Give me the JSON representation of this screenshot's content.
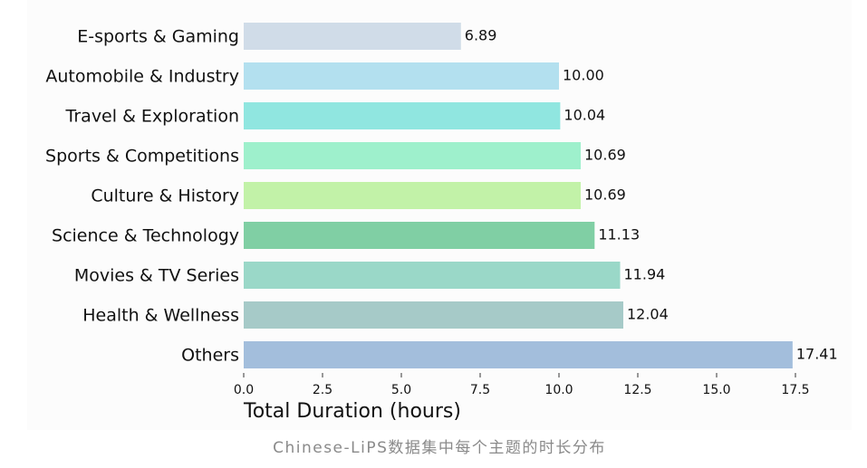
{
  "chart_data": {
    "type": "bar",
    "orientation": "horizontal",
    "categories": [
      "E-sports & Gaming",
      "Automobile & Industry",
      "Travel & Exploration",
      "Sports & Competitions",
      "Culture & History",
      "Science & Technology",
      "Movies & TV Series",
      "Health & Wellness",
      "Others"
    ],
    "values": [
      6.89,
      10.0,
      10.04,
      10.69,
      10.69,
      11.13,
      11.94,
      12.04,
      17.41
    ],
    "value_labels": [
      "6.89",
      "10.00",
      "10.04",
      "10.69",
      "10.69",
      "11.13",
      "11.94",
      "12.04",
      "17.41"
    ],
    "colors": [
      "#d0dce8",
      "#b3e0ef",
      "#90e6e0",
      "#9ef0cc",
      "#c2f2a8",
      "#80cfa4",
      "#9ad8c8",
      "#a6cac8",
      "#a3bedc"
    ],
    "xlabel": "Total Duration (hours)",
    "xlim": [
      0,
      17.5
    ],
    "xticks": [
      {
        "value": 0,
        "label": "0.0"
      },
      2.5,
      {
        "value": 5,
        "label": "5.0"
      },
      7.5,
      {
        "value": 10,
        "label": "10.0"
      },
      12.5,
      {
        "value": 15,
        "label": "15.0"
      },
      17.5
    ],
    "grid": false
  },
  "caption": "Chinese-LiPS数据集中每个主题的时长分布"
}
